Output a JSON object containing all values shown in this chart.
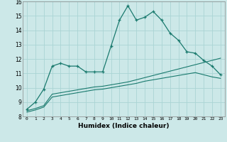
{
  "title": "",
  "xlabel": "Humidex (Indice chaleur)",
  "background_color": "#cce8e8",
  "line_color": "#1a7a6e",
  "xlim": [
    -0.5,
    23.5
  ],
  "ylim": [
    8,
    16
  ],
  "xticks": [
    0,
    1,
    2,
    3,
    4,
    5,
    6,
    7,
    8,
    9,
    10,
    11,
    12,
    13,
    14,
    15,
    16,
    17,
    18,
    19,
    20,
    21,
    22,
    23
  ],
  "yticks": [
    8,
    9,
    10,
    11,
    12,
    13,
    14,
    15,
    16
  ],
  "grid_color": "#aad4d4",
  "curve1_x": [
    0,
    1,
    2,
    3,
    4,
    5,
    6,
    7,
    8,
    9,
    10,
    11,
    12,
    13,
    14,
    15,
    16,
    17,
    18,
    19,
    20,
    21,
    22,
    23
  ],
  "curve1_y": [
    8.5,
    9.0,
    9.9,
    11.5,
    11.7,
    11.5,
    11.5,
    11.1,
    11.1,
    11.1,
    12.9,
    14.7,
    15.7,
    14.7,
    14.9,
    15.3,
    14.7,
    13.8,
    13.3,
    12.5,
    12.4,
    11.9,
    11.5,
    10.9
  ],
  "curve2_x": [
    0,
    1,
    2,
    3,
    4,
    5,
    6,
    7,
    8,
    9,
    10,
    11,
    12,
    13,
    14,
    15,
    16,
    17,
    18,
    19,
    20,
    21,
    22,
    23
  ],
  "curve2_y": [
    8.4,
    8.55,
    8.75,
    9.55,
    9.65,
    9.75,
    9.85,
    9.95,
    10.05,
    10.1,
    10.2,
    10.3,
    10.4,
    10.55,
    10.7,
    10.85,
    11.0,
    11.15,
    11.3,
    11.45,
    11.6,
    11.75,
    11.9,
    12.05
  ],
  "curve3_x": [
    0,
    1,
    2,
    3,
    4,
    5,
    6,
    7,
    8,
    9,
    10,
    11,
    12,
    13,
    14,
    15,
    16,
    17,
    18,
    19,
    20,
    21,
    22,
    23
  ],
  "curve3_y": [
    8.3,
    8.45,
    8.65,
    9.35,
    9.45,
    9.55,
    9.65,
    9.75,
    9.85,
    9.9,
    10.0,
    10.1,
    10.2,
    10.3,
    10.45,
    10.55,
    10.65,
    10.75,
    10.85,
    10.95,
    11.05,
    10.9,
    10.75,
    10.65
  ]
}
